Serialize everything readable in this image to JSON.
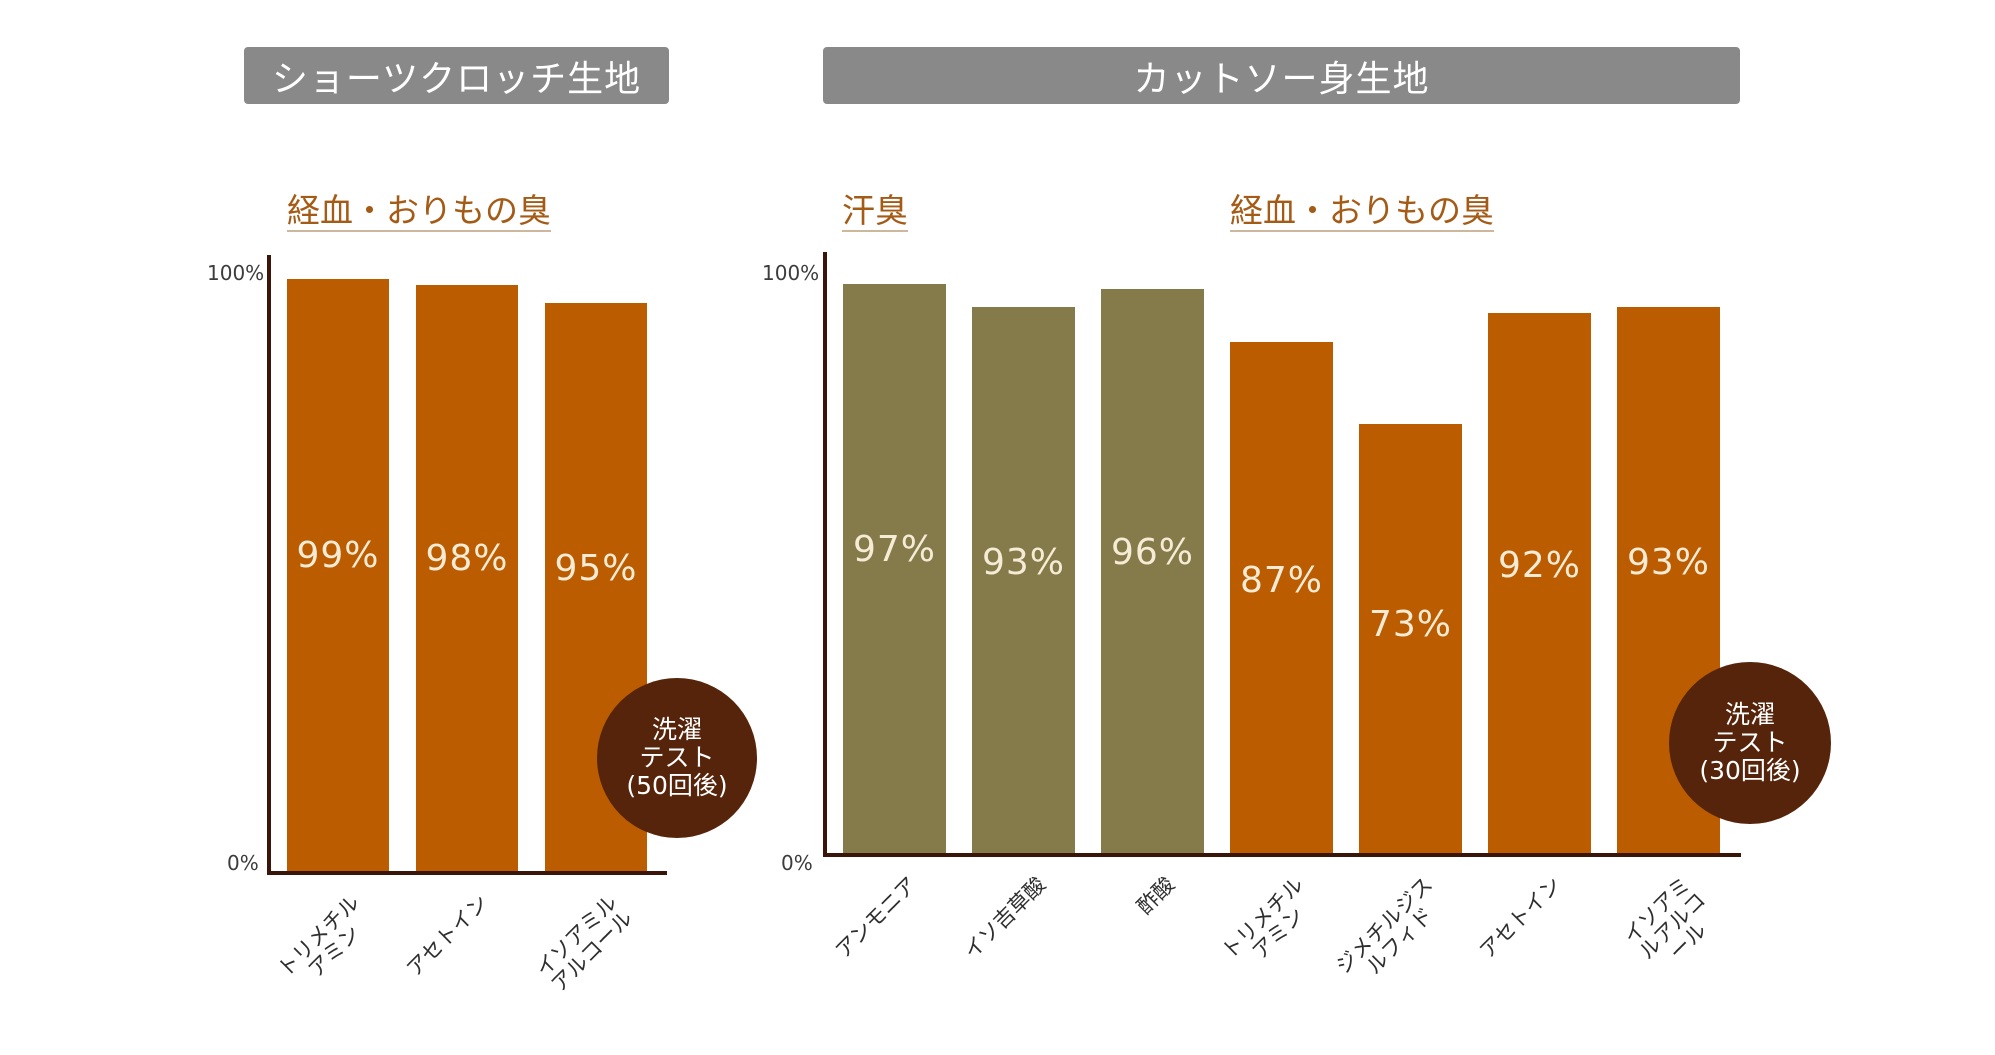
{
  "colors": {
    "header_bg": "#898989",
    "sweat": "#857a4a",
    "menstrual": "#bb5c00",
    "badge": "#56240a",
    "label": "#a45b16",
    "axis": "#3a160a",
    "value_text": "#f6ecd6"
  },
  "left_panel": {
    "header": "ショーツクロッチ生地",
    "section_label": "経血・おりもの臭",
    "badge": {
      "line1": "洗濯",
      "line2": "テスト",
      "line3": "(50回後)"
    }
  },
  "right_panel": {
    "header": "カットソー身生地",
    "section_label_sweat": "汗臭",
    "section_label_menstrual": "経血・おりもの臭",
    "badge": {
      "line1": "洗濯",
      "line2": "テスト",
      "line3": "(30回後)"
    }
  },
  "chart_data": [
    {
      "type": "bar",
      "title": "ショーツクロッチ生地",
      "categories": [
        [
          "トリメチル",
          "アミン"
        ],
        [
          "アセトイン"
        ],
        [
          "イソアミル",
          "アルコール"
        ]
      ],
      "values": [
        99,
        98,
        95
      ],
      "value_labels": [
        "99%",
        "98%",
        "95%"
      ],
      "groups": [
        "menstrual",
        "menstrual",
        "menstrual"
      ],
      "ylim": [
        0,
        100
      ],
      "y_tick_labels": {
        "min": "0%",
        "max": "100%"
      }
    },
    {
      "type": "bar",
      "title": "カットソー身生地",
      "categories": [
        [
          "アンモニア"
        ],
        [
          "イソ吉草酸"
        ],
        [
          "酢酸"
        ],
        [
          "トリメチル",
          "アミン"
        ],
        [
          "ジメチルジス",
          "ルフィド"
        ],
        [
          "アセトイン"
        ],
        [
          "イソアミ",
          "ルアルコ",
          "ール"
        ]
      ],
      "values": [
        97,
        93,
        96,
        87,
        73,
        92,
        93
      ],
      "value_labels": [
        "97%",
        "93%",
        "96%",
        "87%",
        "73%",
        "92%",
        "93%"
      ],
      "groups": [
        "sweat",
        "sweat",
        "sweat",
        "menstrual",
        "menstrual",
        "menstrual",
        "menstrual"
      ],
      "ylim": [
        0,
        100
      ],
      "y_tick_labels": {
        "min": "0%",
        "max": "100%"
      }
    }
  ]
}
